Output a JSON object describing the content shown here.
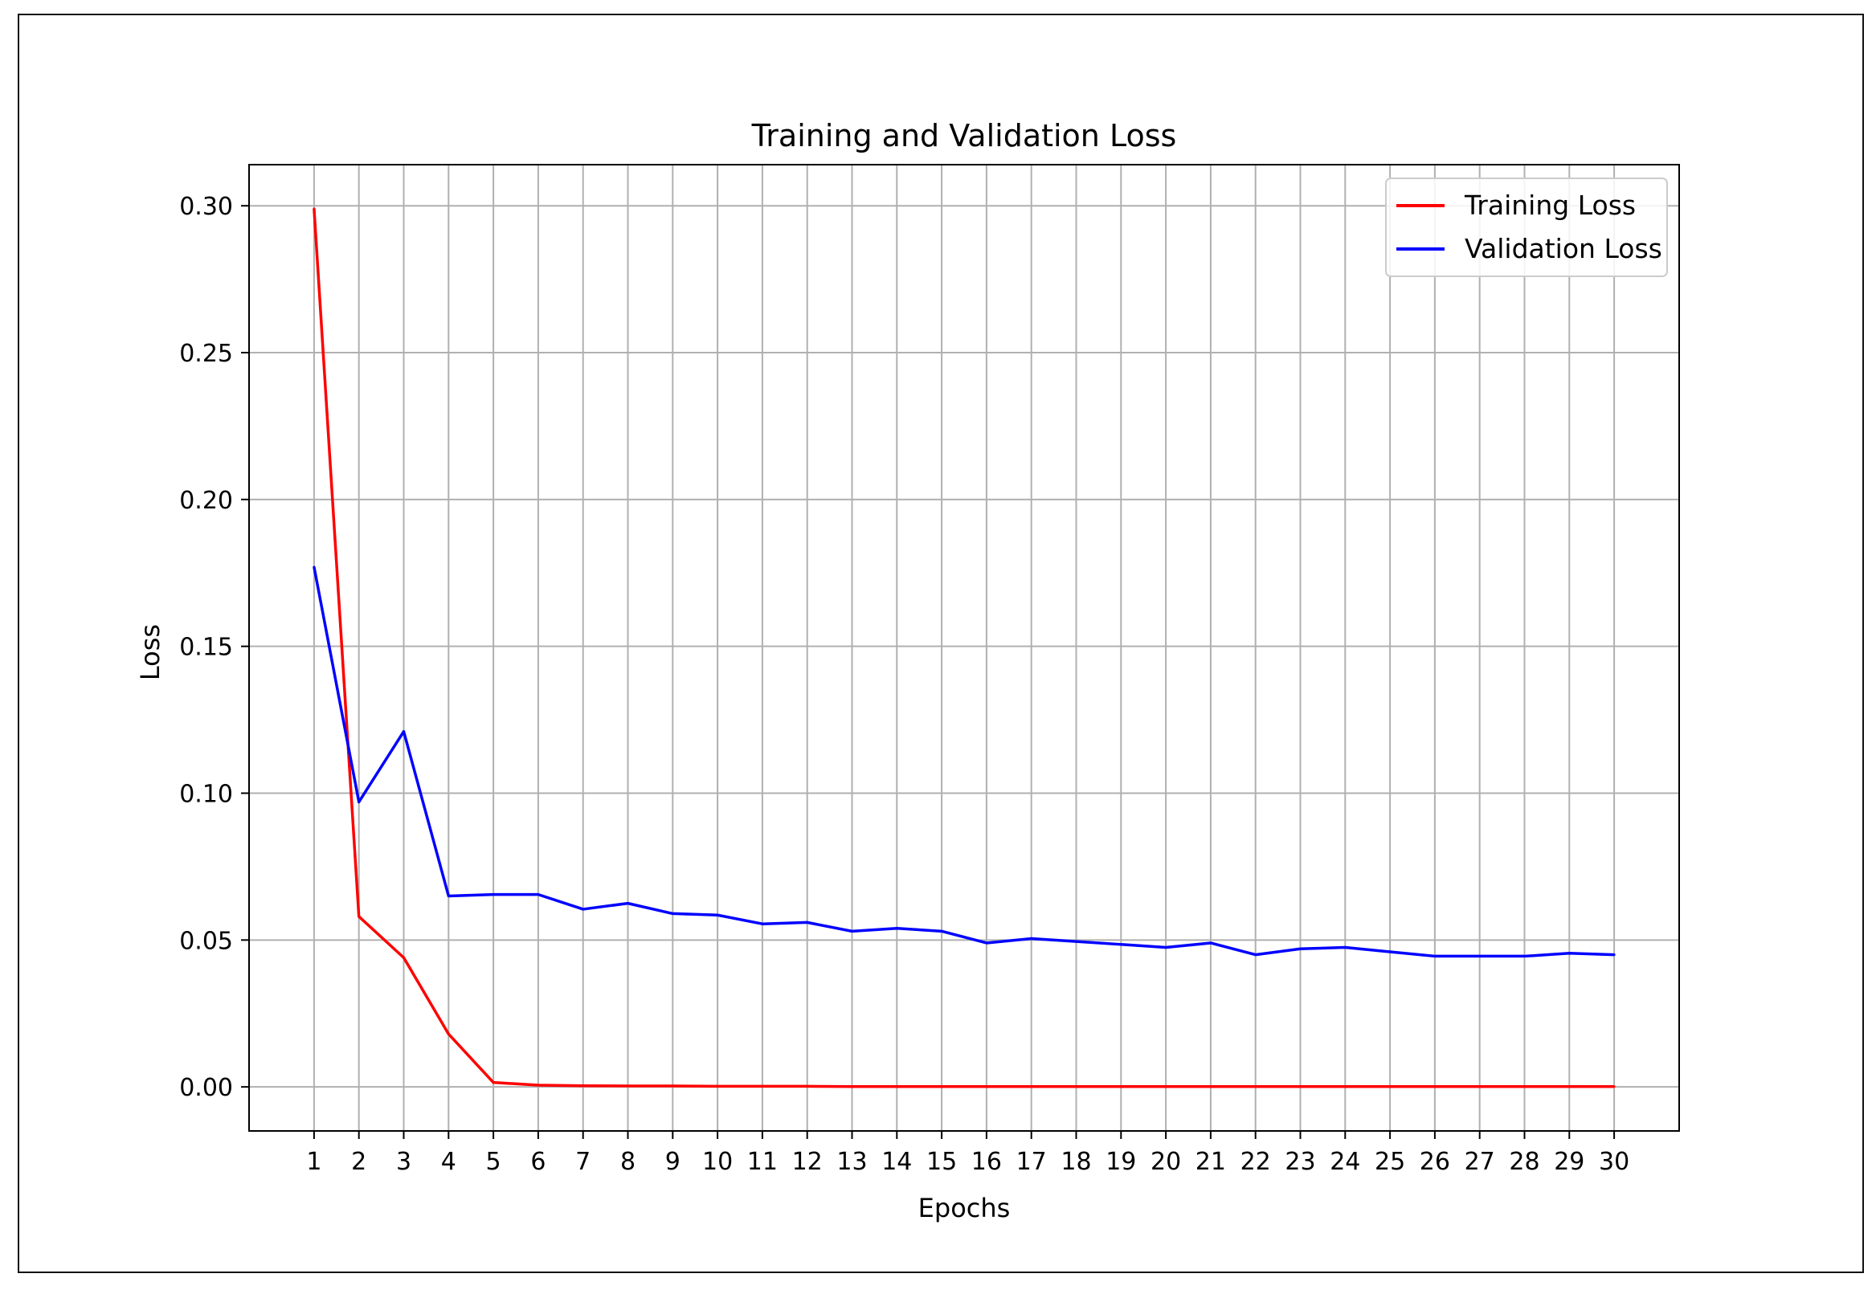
{
  "chart_data": {
    "type": "line",
    "title": "Training and Validation Loss",
    "xlabel": "Epochs",
    "ylabel": "Loss",
    "x": [
      1,
      2,
      3,
      4,
      5,
      6,
      7,
      8,
      9,
      10,
      11,
      12,
      13,
      14,
      15,
      16,
      17,
      18,
      19,
      20,
      21,
      22,
      23,
      24,
      25,
      26,
      27,
      28,
      29,
      30
    ],
    "xticks": [
      "1",
      "2",
      "3",
      "4",
      "5",
      "6",
      "7",
      "8",
      "9",
      "10",
      "11",
      "12",
      "13",
      "14",
      "15",
      "16",
      "17",
      "18",
      "19",
      "20",
      "21",
      "22",
      "23",
      "24",
      "25",
      "26",
      "27",
      "28",
      "29",
      "30"
    ],
    "yticks": [
      "0.00",
      "0.05",
      "0.10",
      "0.15",
      "0.20",
      "0.25",
      "0.30"
    ],
    "ytick_values": [
      0.0,
      0.05,
      0.1,
      0.15,
      0.2,
      0.25,
      0.3
    ],
    "xlim": [
      -0.45,
      31.45
    ],
    "ylim": [
      -0.015,
      0.314
    ],
    "grid": true,
    "legend_position": "top-right",
    "series": [
      {
        "name": "Training Loss",
        "color": "#ff0000",
        "values": [
          0.299,
          0.058,
          0.044,
          0.018,
          0.0015,
          0.0006,
          0.0004,
          0.0003,
          0.0003,
          0.0002,
          0.0002,
          0.0002,
          0.0001,
          0.0001,
          0.0001,
          0.0001,
          0.0001,
          0.0001,
          0.0001,
          0.0001,
          0.0001,
          0.0001,
          0.0001,
          0.0001,
          0.0001,
          0.0001,
          0.0001,
          0.0001,
          0.0001,
          0.0001
        ]
      },
      {
        "name": "Validation Loss",
        "color": "#0000ff",
        "values": [
          0.177,
          0.097,
          0.121,
          0.065,
          0.0655,
          0.0655,
          0.0605,
          0.0625,
          0.059,
          0.0585,
          0.0555,
          0.056,
          0.053,
          0.054,
          0.053,
          0.049,
          0.0505,
          0.0495,
          0.0485,
          0.0475,
          0.049,
          0.045,
          0.047,
          0.0475,
          0.046,
          0.0445,
          0.0445,
          0.0445,
          0.0455,
          0.045
        ]
      }
    ]
  }
}
